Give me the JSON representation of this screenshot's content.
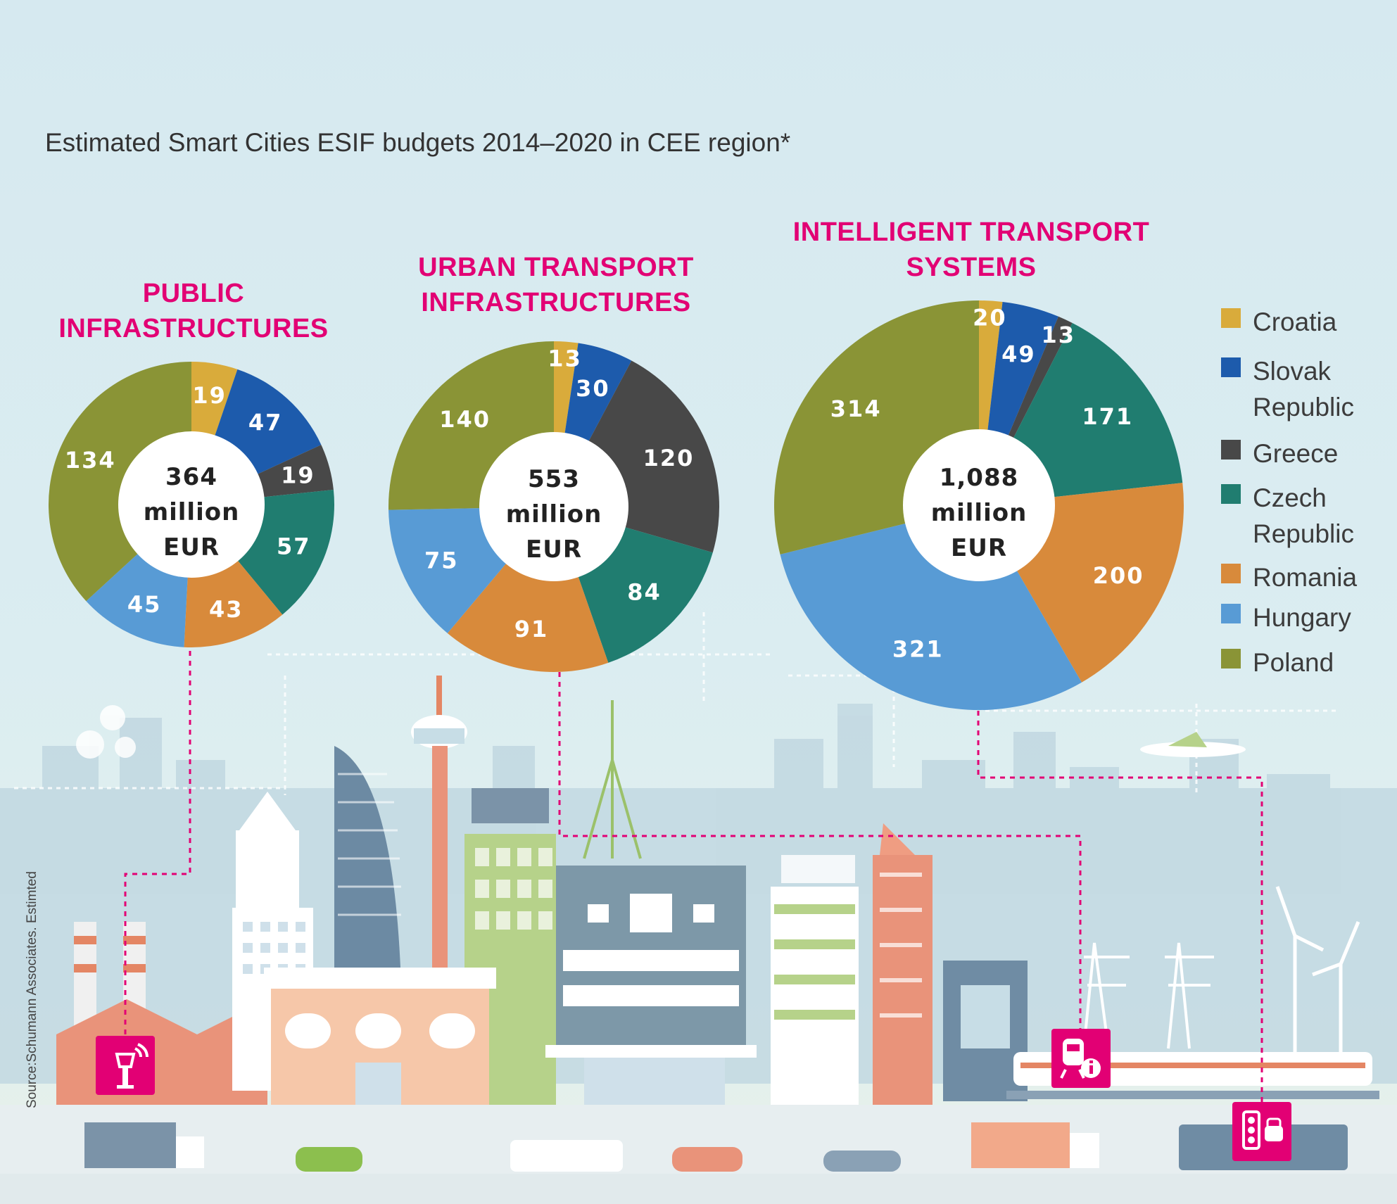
{
  "title": "Estimated Smart Cities ESIF budgets 2014–2020 in CEE region*",
  "source": "Source:Schumann Associates. Estimted",
  "colors": {
    "Croatia": "#d9ab3b",
    "Slovak Republic": "#1d5bac",
    "Greece": "#484848",
    "Czech Republic": "#207d70",
    "Romania": "#d88a3b",
    "Hungary": "#589bd5",
    "Poland": "#8a9436",
    "accent": "#e20074"
  },
  "legend": [
    {
      "name": "Croatia",
      "lines": [
        "Croatia"
      ]
    },
    {
      "name": "Slovak Republic",
      "lines": [
        "Slovak",
        "Republic"
      ]
    },
    {
      "name": "Greece",
      "lines": [
        "Greece"
      ]
    },
    {
      "name": "Czech Republic",
      "lines": [
        "Czech",
        "Republic"
      ]
    },
    {
      "name": "Romania",
      "lines": [
        "Romania"
      ]
    },
    {
      "name": "Hungary",
      "lines": [
        "Hungary"
      ]
    },
    {
      "name": "Poland",
      "lines": [
        "Poland"
      ]
    }
  ],
  "icons": [
    "street-lamp-icon",
    "train-info-icon",
    "traffic-light-icon"
  ],
  "chart_data": [
    {
      "type": "pie",
      "title_lines": [
        "PUBLIC",
        "INFRASTRUCTURES"
      ],
      "total_label": [
        "364",
        "million",
        "EUR"
      ],
      "categories": [
        "Croatia",
        "Slovak Republic",
        "Greece",
        "Czech Republic",
        "Romania",
        "Hungary",
        "Poland"
      ],
      "values": [
        19,
        47,
        19,
        57,
        43,
        45,
        134
      ]
    },
    {
      "type": "pie",
      "title_lines": [
        "URBAN TRANSPORT",
        "INFRASTRUCTURES"
      ],
      "total_label": [
        "553",
        "million",
        "EUR"
      ],
      "categories": [
        "Croatia",
        "Slovak Republic",
        "Greece",
        "Czech Republic",
        "Romania",
        "Hungary",
        "Poland"
      ],
      "values": [
        13,
        30,
        120,
        84,
        91,
        75,
        140
      ]
    },
    {
      "type": "pie",
      "title_lines": [
        "INTELLIGENT TRANSPORT",
        "SYSTEMS"
      ],
      "total_label": [
        "1,088",
        "million",
        "EUR"
      ],
      "categories": [
        "Croatia",
        "Slovak Republic",
        "Greece",
        "Czech Republic",
        "Romania",
        "Hungary",
        "Poland"
      ],
      "values": [
        20,
        49,
        13,
        171,
        200,
        321,
        314
      ]
    }
  ]
}
